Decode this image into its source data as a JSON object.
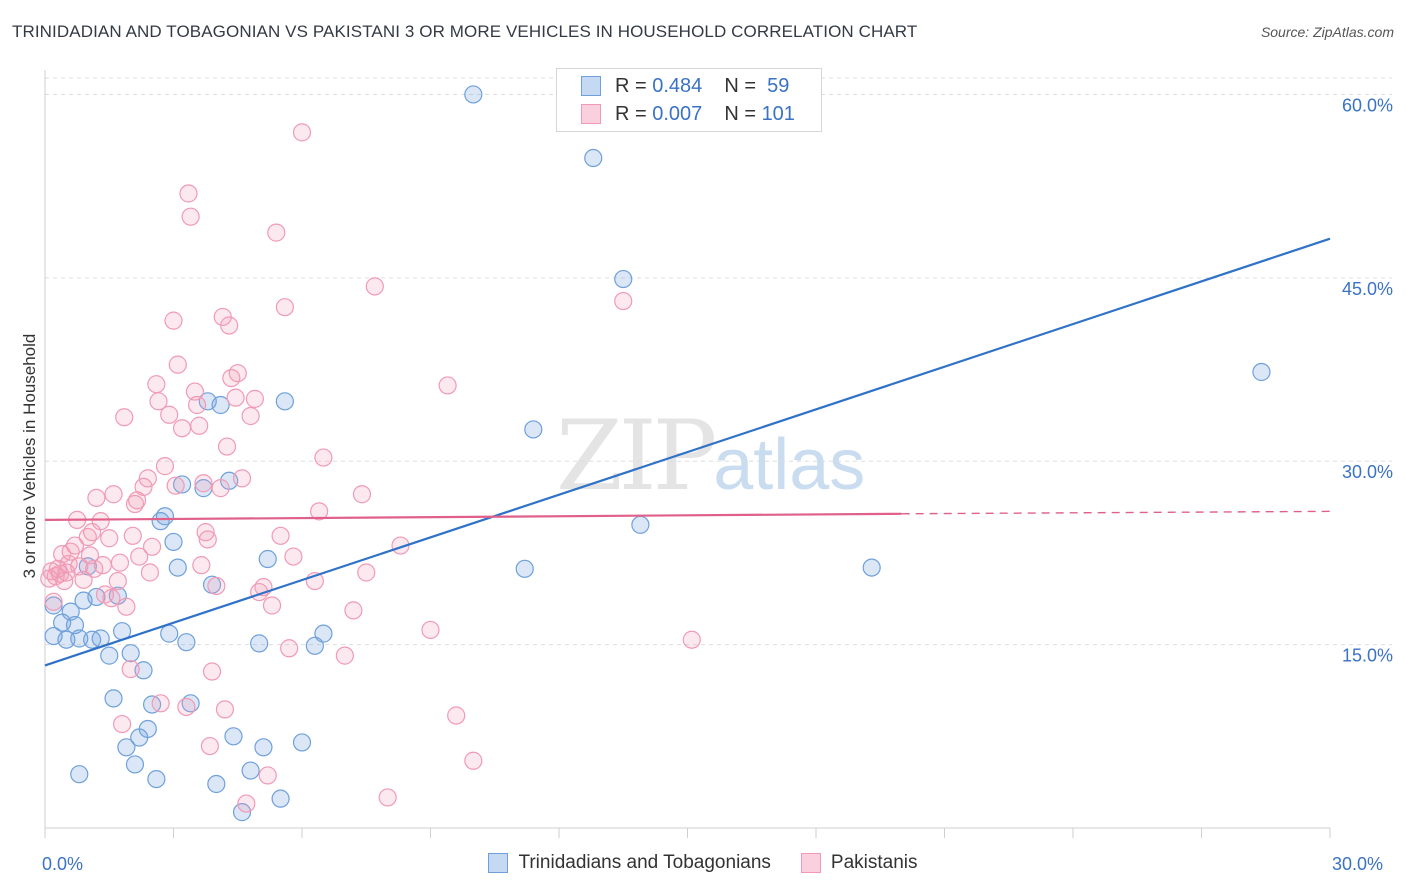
{
  "title": "TRINIDADIAN AND TOBAGONIAN VS PAKISTANI 3 OR MORE VEHICLES IN HOUSEHOLD CORRELATION CHART",
  "source": "Source: ZipAtlas.com",
  "watermark": {
    "zip": "ZIP",
    "atlas": "atlas"
  },
  "legend_top": [
    {
      "r_label": "R =",
      "r_value": "0.484",
      "n_label": "N =",
      "n_value": "59",
      "color": "#6fa0dc"
    },
    {
      "r_label": "R =",
      "r_value": "0.007",
      "n_label": "N =",
      "n_value": "101",
      "color": "#f19ab5"
    }
  ],
  "legend_bottom": [
    {
      "label": "Trinidadians and Tobagonians",
      "color": "#6fa0dc"
    },
    {
      "label": "Pakistanis",
      "color": "#f19ab5"
    }
  ],
  "chart_data": {
    "type": "scatter",
    "title": "TRINIDADIAN AND TOBAGONIAN VS PAKISTANI 3 OR MORE VEHICLES IN HOUSEHOLD CORRELATION CHART",
    "xlabel": "",
    "ylabel": "3 or more Vehicles in Household",
    "xlim": [
      0,
      30
    ],
    "ylim": [
      0,
      62
    ],
    "x_tick_labels": [
      "0.0%",
      "30.0%"
    ],
    "y_ticks": [
      15,
      30,
      45,
      60
    ],
    "y_tick_labels": [
      "15.0%",
      "30.0%",
      "45.0%",
      "60.0%"
    ],
    "grid": true,
    "legend_position": "top-center",
    "series": [
      {
        "name": "Trinidadians and Tobagonians",
        "color": "#6fa0dc",
        "trend": {
          "x": [
            0,
            30
          ],
          "y": [
            13.3,
            48.2
          ]
        },
        "points": [
          [
            0.2,
            18.2
          ],
          [
            0.2,
            15.7
          ],
          [
            0.4,
            16.8
          ],
          [
            0.5,
            15.4
          ],
          [
            0.6,
            17.7
          ],
          [
            0.7,
            16.6
          ],
          [
            0.8,
            4.4
          ],
          [
            0.8,
            15.5
          ],
          [
            0.9,
            18.6
          ],
          [
            1.0,
            21.4
          ],
          [
            1.1,
            15.4
          ],
          [
            1.2,
            18.9
          ],
          [
            1.3,
            15.5
          ],
          [
            1.5,
            14.1
          ],
          [
            1.6,
            10.6
          ],
          [
            1.7,
            19.0
          ],
          [
            1.8,
            16.1
          ],
          [
            1.9,
            6.6
          ],
          [
            2.0,
            14.3
          ],
          [
            2.1,
            5.2
          ],
          [
            2.2,
            7.4
          ],
          [
            2.3,
            12.9
          ],
          [
            2.4,
            8.1
          ],
          [
            2.5,
            10.1
          ],
          [
            2.6,
            4.0
          ],
          [
            2.7,
            25.1
          ],
          [
            2.8,
            25.5
          ],
          [
            2.9,
            15.9
          ],
          [
            3.0,
            23.4
          ],
          [
            3.1,
            21.3
          ],
          [
            3.2,
            28.1
          ],
          [
            3.3,
            15.2
          ],
          [
            3.4,
            10.2
          ],
          [
            3.7,
            27.8
          ],
          [
            3.8,
            34.9
          ],
          [
            3.9,
            19.9
          ],
          [
            4.0,
            3.6
          ],
          [
            4.1,
            34.6
          ],
          [
            4.3,
            28.4
          ],
          [
            4.4,
            7.5
          ],
          [
            4.6,
            1.3
          ],
          [
            4.8,
            4.7
          ],
          [
            5.0,
            15.1
          ],
          [
            5.1,
            6.6
          ],
          [
            5.2,
            22.0
          ],
          [
            5.5,
            2.4
          ],
          [
            5.6,
            34.9
          ],
          [
            6.0,
            7.0
          ],
          [
            6.3,
            14.9
          ],
          [
            6.5,
            15.9
          ],
          [
            10.0,
            60.0
          ],
          [
            11.2,
            21.2
          ],
          [
            11.4,
            32.6
          ],
          [
            12.8,
            54.8
          ],
          [
            13.5,
            44.9
          ],
          [
            13.9,
            24.8
          ],
          [
            19.3,
            21.3
          ],
          [
            28.4,
            37.3
          ]
        ]
      },
      {
        "name": "Pakistanis",
        "color": "#f19ab5",
        "trend": {
          "x": [
            0,
            20
          ],
          "y": [
            25.2,
            25.7
          ]
        },
        "trend_dashed_to": {
          "x": 30,
          "y": 25.9
        },
        "points": [
          [
            0.1,
            20.4
          ],
          [
            0.15,
            21.0
          ],
          [
            0.2,
            18.5
          ],
          [
            0.25,
            20.6
          ],
          [
            0.3,
            21.2
          ],
          [
            0.35,
            20.8
          ],
          [
            0.4,
            22.4
          ],
          [
            0.45,
            20.2
          ],
          [
            0.5,
            20.9
          ],
          [
            0.55,
            21.6
          ],
          [
            0.6,
            22.6
          ],
          [
            0.7,
            23.1
          ],
          [
            0.75,
            25.2
          ],
          [
            0.8,
            21.4
          ],
          [
            0.9,
            20.3
          ],
          [
            1.0,
            23.8
          ],
          [
            1.05,
            22.3
          ],
          [
            1.1,
            24.2
          ],
          [
            1.15,
            21.2
          ],
          [
            1.2,
            27.0
          ],
          [
            1.3,
            25.1
          ],
          [
            1.35,
            21.5
          ],
          [
            1.4,
            19.1
          ],
          [
            1.5,
            23.7
          ],
          [
            1.55,
            18.8
          ],
          [
            1.6,
            27.3
          ],
          [
            1.7,
            20.2
          ],
          [
            1.75,
            21.7
          ],
          [
            1.8,
            8.5
          ],
          [
            1.85,
            33.6
          ],
          [
            1.9,
            18.1
          ],
          [
            2.0,
            13.0
          ],
          [
            2.05,
            23.9
          ],
          [
            2.1,
            26.5
          ],
          [
            2.15,
            26.8
          ],
          [
            2.2,
            22.2
          ],
          [
            2.3,
            27.9
          ],
          [
            2.4,
            28.6
          ],
          [
            2.45,
            20.9
          ],
          [
            2.5,
            23.0
          ],
          [
            2.6,
            36.3
          ],
          [
            2.65,
            34.9
          ],
          [
            2.7,
            10.2
          ],
          [
            2.8,
            29.6
          ],
          [
            2.9,
            33.8
          ],
          [
            3.0,
            41.5
          ],
          [
            3.05,
            28.0
          ],
          [
            3.1,
            37.9
          ],
          [
            3.2,
            32.7
          ],
          [
            3.3,
            9.9
          ],
          [
            3.35,
            51.9
          ],
          [
            3.4,
            50.0
          ],
          [
            3.5,
            35.7
          ],
          [
            3.55,
            34.6
          ],
          [
            3.6,
            32.9
          ],
          [
            3.65,
            21.5
          ],
          [
            3.7,
            28.2
          ],
          [
            3.75,
            24.2
          ],
          [
            3.8,
            23.6
          ],
          [
            3.85,
            6.7
          ],
          [
            3.9,
            12.8
          ],
          [
            4.0,
            19.8
          ],
          [
            4.1,
            27.8
          ],
          [
            4.15,
            41.8
          ],
          [
            4.2,
            9.7
          ],
          [
            4.25,
            31.2
          ],
          [
            4.3,
            41.1
          ],
          [
            4.35,
            36.8
          ],
          [
            4.45,
            35.2
          ],
          [
            4.5,
            37.2
          ],
          [
            4.6,
            28.6
          ],
          [
            4.7,
            2.0
          ],
          [
            4.8,
            33.7
          ],
          [
            4.9,
            35.1
          ],
          [
            5.0,
            19.3
          ],
          [
            5.1,
            19.7
          ],
          [
            5.2,
            4.3
          ],
          [
            5.3,
            18.2
          ],
          [
            5.4,
            48.7
          ],
          [
            5.5,
            23.9
          ],
          [
            5.6,
            42.6
          ],
          [
            5.7,
            14.7
          ],
          [
            5.8,
            22.2
          ],
          [
            6.0,
            56.9
          ],
          [
            6.3,
            20.2
          ],
          [
            6.4,
            25.9
          ],
          [
            6.5,
            30.3
          ],
          [
            7.0,
            14.1
          ],
          [
            7.2,
            17.8
          ],
          [
            7.4,
            27.3
          ],
          [
            7.5,
            20.9
          ],
          [
            7.7,
            44.3
          ],
          [
            8.0,
            2.5
          ],
          [
            8.3,
            23.1
          ],
          [
            9.0,
            16.2
          ],
          [
            9.4,
            36.2
          ],
          [
            9.6,
            9.2
          ],
          [
            10.0,
            5.5
          ],
          [
            13.5,
            43.1
          ],
          [
            15.1,
            15.4
          ]
        ]
      }
    ]
  }
}
